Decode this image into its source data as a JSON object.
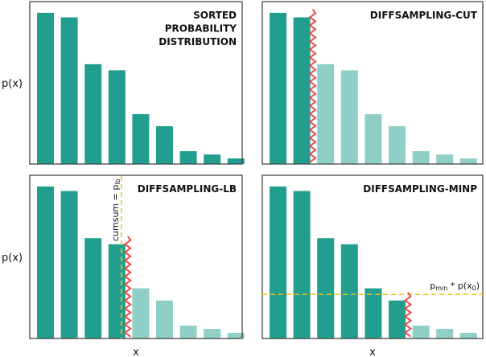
{
  "chart_data": [
    {
      "type": "bar",
      "title": [
        "SORTED",
        "PROBABILITY",
        "DISTRIBUTION"
      ],
      "ylabel": "p(x)",
      "xlabel": "",
      "values": [
        1.0,
        0.97,
        0.66,
        0.62,
        0.33,
        0.25,
        0.085,
        0.063,
        0.037
      ],
      "kept_count": 9,
      "cut": false
    },
    {
      "type": "bar",
      "title": [
        "DIFFSAMPLING-CUT"
      ],
      "ylabel": "",
      "xlabel": "",
      "values": [
        1.0,
        0.97,
        0.66,
        0.62,
        0.33,
        0.25,
        0.085,
        0.063,
        0.037
      ],
      "kept_count": 2,
      "cut": true
    },
    {
      "type": "bar",
      "title": [
        "DIFFSAMPLING-LB"
      ],
      "ylabel": "p(x)",
      "xlabel": "x",
      "values": [
        1.0,
        0.97,
        0.66,
        0.62,
        0.33,
        0.25,
        0.085,
        0.063,
        0.037
      ],
      "kept_count": 4,
      "cut": true,
      "annotation": {
        "orientation": "vertical",
        "text": "cumsum = p",
        "sub": "lb"
      }
    },
    {
      "type": "bar",
      "title": [
        "DIFFSAMPLING-MINP"
      ],
      "ylabel": "",
      "xlabel": "x",
      "values": [
        1.0,
        0.97,
        0.66,
        0.62,
        0.33,
        0.25,
        0.085,
        0.063,
        0.037
      ],
      "kept_count": 6,
      "cut": true,
      "annotation": {
        "orientation": "horizontal",
        "threshold": 0.29,
        "text": "p",
        "sub": "min",
        "text2": " * p(x",
        "sub2": "0",
        "text3": ")"
      }
    }
  ],
  "colors": {
    "kept": "#229e8f",
    "dropped": "#8fcfc6",
    "cut": "#e84c4c",
    "threshold": "#f2c21b",
    "frame": "#444444"
  }
}
